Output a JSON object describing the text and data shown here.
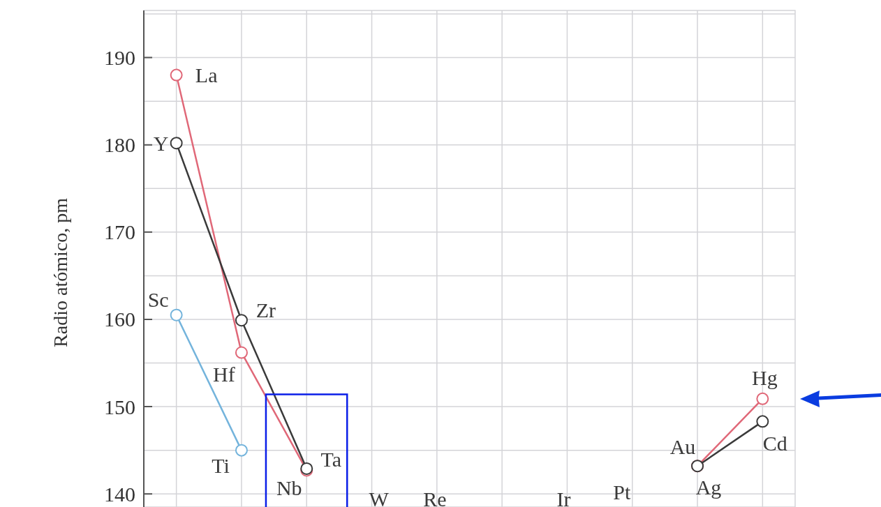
{
  "chart_data": {
    "type": "line",
    "ylabel": "Radio atómico, pm",
    "categories": [
      null,
      null,
      null,
      null,
      null,
      null,
      null,
      null,
      null,
      null
    ],
    "ylim": [
      138.5,
      195.4
    ],
    "yticks": [
      140,
      {
        "value": 145,
        "label": null
      },
      150,
      {
        "value": 155,
        "label": null
      },
      160,
      {
        "value": 165,
        "label": null
      },
      170,
      {
        "value": 175,
        "label": null
      },
      180,
      {
        "value": 185,
        "label": null
      },
      190,
      {
        "value": 195,
        "label": null
      }
    ],
    "tick_labels": "y",
    "grid": true,
    "marker": "circle",
    "line_style": "solid",
    "series": [
      {
        "color": "#e06878",
        "values": [
          188.0,
          156.2,
          142.7,
          null,
          null,
          null,
          null,
          null,
          143.2,
          150.9
        ],
        "value_labels": [
          "La",
          "Hf",
          "Ta",
          "W",
          "Re",
          null,
          "Ir",
          "Pt",
          "Au",
          "Hg"
        ]
      },
      {
        "color": "#3a3a3a",
        "values": [
          180.2,
          159.9,
          142.9,
          null,
          null,
          null,
          null,
          null,
          143.2,
          148.3
        ],
        "value_labels": [
          "Y",
          "Zr",
          "Nb",
          null,
          null,
          null,
          null,
          null,
          "Ag",
          "Cd"
        ]
      },
      {
        "color": "#74b4dc",
        "values": [
          160.5,
          145.0,
          null,
          null,
          null,
          null,
          null,
          null,
          null,
          null
        ],
        "value_labels": [
          "Sc",
          "Ti",
          null,
          null,
          null,
          null,
          null,
          null,
          null,
          null
        ]
      }
    ]
  }
}
